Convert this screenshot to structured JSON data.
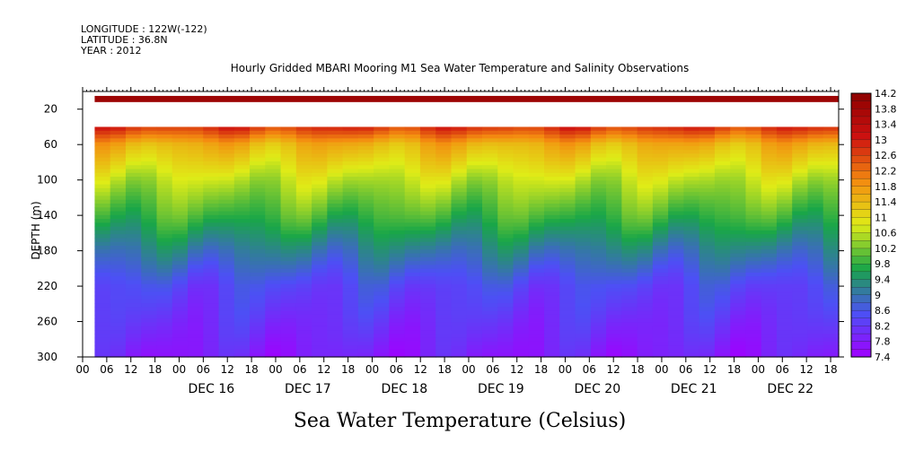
{
  "header": {
    "longitude": "LONGITUDE : 122W(-122)",
    "latitude": "LATITUDE : 36.8N",
    "year": "YEAR : 2012"
  },
  "chart_data": {
    "type": "heatmap",
    "title": "Hourly Gridded MBARI Mooring M1 Sea Water Temperature and Salinity Observations",
    "subtitle": "Sea Water Temperature (Celsius)",
    "ylabel": "DEPTH (m)",
    "xlabel": "",
    "x_start": "2012-12-15T00:00",
    "x_end": "2012-12-22T20:00",
    "data_start": "2012-12-15T03:00",
    "xlim_hours": [
      0,
      188
    ],
    "ylim": [
      300,
      0
    ],
    "y_ticks": [
      20,
      60,
      100,
      140,
      180,
      220,
      260,
      300
    ],
    "x_hour_ticks": [
      "00",
      "06",
      "12",
      "18"
    ],
    "x_day_labels": [
      "DEC 16",
      "DEC 17",
      "DEC 18",
      "DEC 19",
      "DEC 20",
      "DEC 21",
      "DEC 22"
    ],
    "colorbar": {
      "min": 7.4,
      "max": 14.2,
      "step": 0.2,
      "labels": [
        "14.2",
        "13.8",
        "13.4",
        "13",
        "12.6",
        "12.2",
        "11.8",
        "11.4",
        "11",
        "10.6",
        "10.2",
        "9.8",
        "9.4",
        "9",
        "8.6",
        "8.2",
        "7.8",
        "7.4"
      ]
    },
    "surface_layer": {
      "depth_range": [
        5,
        12
      ],
      "value": 13.9
    },
    "missing_layer": {
      "depth_range": [
        12,
        40
      ]
    },
    "profile": {
      "depths": [
        40,
        60,
        100,
        140,
        180,
        220,
        260,
        300
      ],
      "values": [
        12.8,
        11.5,
        10.6,
        9.9,
        9.1,
        8.4,
        8.1,
        7.8
      ]
    },
    "colors": {
      "scale": [
        "#a000ff",
        "#4c50f5",
        "#19a648",
        "#dfec17",
        "#f48c10",
        "#ce1210",
        "#8b0000"
      ]
    }
  }
}
